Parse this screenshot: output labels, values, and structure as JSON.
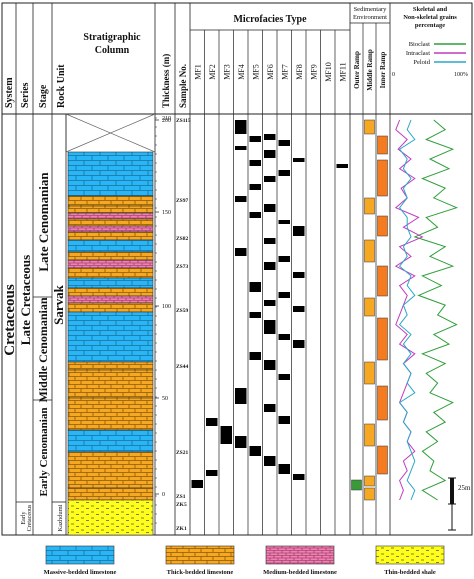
{
  "headers": {
    "system": "System",
    "series": "Series",
    "stage": "Stage",
    "rock_unit": "Rock Unit",
    "strat_col_line1": "Stratigraphic",
    "strat_col_line2": "Column",
    "thickness": "Thickness (m)",
    "sample_no": "Sample No.",
    "microfacies": "Microfacies Type",
    "sed_env_line1": "Sedimentary",
    "sed_env_line2": "Environment",
    "grains_line1": "Skeletal and",
    "grains_line2": "Non-skeletal grains",
    "grains_line3": "percentage"
  },
  "microfacies_types": [
    "MF1",
    "MF2",
    "MF3",
    "MF4",
    "MF5",
    "MF6",
    "MF7",
    "MF8",
    "MF9",
    "MF10",
    "MF11"
  ],
  "environments": [
    "Outer Ramp",
    "Middle Ramp",
    "Inner Ramp"
  ],
  "grains_legend": [
    {
      "label": "Bioclast",
      "color": "#2e9e3a"
    },
    {
      "label": "Intraclast",
      "color": "#c23bbf"
    },
    {
      "label": "Peloid",
      "color": "#2aa7c9"
    }
  ],
  "grains_axis": {
    "min": "0",
    "max": "100%"
  },
  "labels": {
    "system": "Cretaceous",
    "series_upper": "Late Cretaceous",
    "series_lower_line1": "Early",
    "series_lower_line2": "Cretaceous",
    "stage_late": "Late Cenomanian",
    "stage_middle": "Middle Cenomanian",
    "stage_early": "Early Cenomanian",
    "unit_upper": "Sarvak",
    "unit_lower": "Kazhdumi"
  },
  "thickness_ticks": [
    "0",
    "50",
    "100",
    "150",
    "200",
    "210"
  ],
  "samples": [
    "ZS115",
    "ZS97",
    "ZS82",
    "ZS73",
    "ZS59",
    "ZS44",
    "ZS21",
    "ZS1",
    "ZK5",
    "ZK1"
  ],
  "scale_bar": "25m",
  "legend": [
    {
      "label": "Massive-bedded limestone",
      "color": "#29b6f6"
    },
    {
      "label": "Thick-bedded limestone",
      "color": "#f7a823"
    },
    {
      "label": "Medium-bedded limestone",
      "color": "#f47fb1"
    },
    {
      "label": "Thin-bedded shale",
      "color": "#ffff1a"
    }
  ],
  "colors": {
    "inner_ramp": "#f47b20",
    "middle_ramp": "#f7a823",
    "outer_ramp": "#3a9a3a"
  }
}
